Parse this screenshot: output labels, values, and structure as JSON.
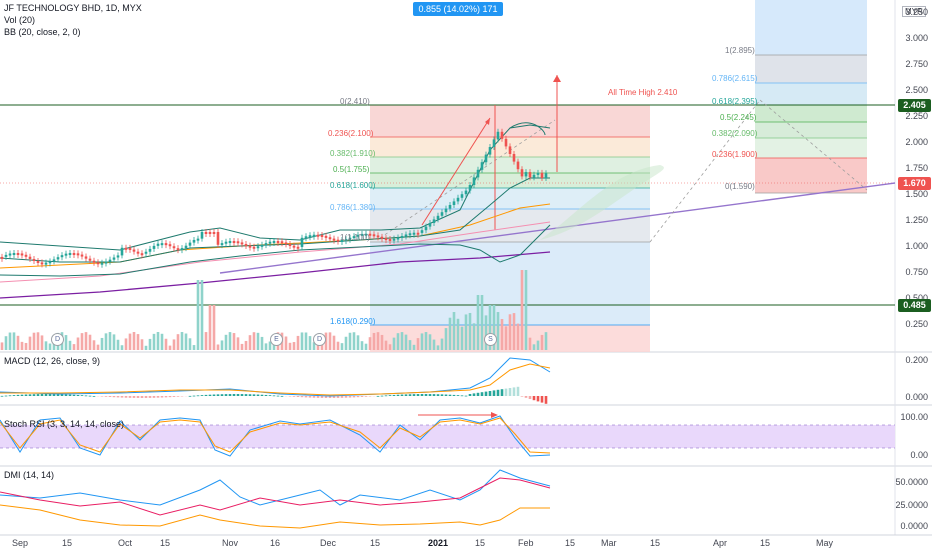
{
  "header": {
    "symbol": "JF TECHNOLOGY BHD, 1D, MYX",
    "vol": "Vol (20)",
    "bb": "BB (20, close, 2, 0)",
    "top_badge": "0.855 (14.02%) 171",
    "currency": "MYR"
  },
  "price_axis": [
    "3.250",
    "3.000",
    "2.750",
    "2.500",
    "2.250",
    "2.000",
    "1.750",
    "1.500",
    "1.250",
    "1.000",
    "0.750",
    "0.500",
    "0.250"
  ],
  "price_tags": {
    "high": "2.405",
    "last": "1.670",
    "support": "0.485"
  },
  "fib_left": [
    "0(2.410)",
    "0.236(2.100)",
    "0.382(1.910)",
    "0.5(1.755)",
    "0.618(1.600)",
    "0.786(1.380)",
    "1(1.100)",
    "1.618(0.290)"
  ],
  "fib_right": [
    "1(2.895)",
    "0.786(2.615)",
    "0.618(2.395)",
    "0.5(2.245)",
    "0.382(2.090)",
    "0.236(1.900)",
    "0(1.590)"
  ],
  "annotation": "All Time High 2.410",
  "events": [
    "D",
    "E",
    "D",
    "S"
  ],
  "panels": {
    "macd": {
      "label": "MACD (12, 26, close, 9)",
      "axis": [
        "0.200",
        "0.000"
      ]
    },
    "stoch": {
      "label": "Stoch RSI (3, 3, 14, 14, close)",
      "axis": [
        "100.00",
        "0.00"
      ]
    },
    "dmi": {
      "label": "DMI (14, 14)",
      "axis": [
        "50.0000",
        "25.0000",
        "0.0000"
      ]
    }
  },
  "time_axis": [
    "Sep",
    "15",
    "Oct",
    "15",
    "Nov",
    "16",
    "Dec",
    "15",
    "2021",
    "15",
    "Feb",
    "15",
    "Mar",
    "15",
    "Apr",
    "15",
    "May"
  ],
  "colors": {
    "up": "#26a69a",
    "down": "#ef5350",
    "bb": "#1e7a6e",
    "orange": "#ff9800",
    "purple": "#7e57c2",
    "blue": "#2196f3",
    "green_line": "#1b5e20",
    "pink": "#e91e63"
  }
}
